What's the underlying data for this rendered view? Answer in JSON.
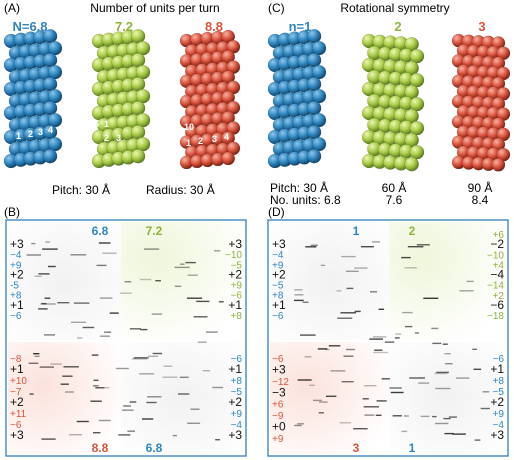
{
  "panel_a": {
    "label": "(A)",
    "title": "Number of units per turn",
    "n_labels": [
      {
        "text": "N=6.8",
        "color": "#2f86c0"
      },
      {
        "text": "7.2",
        "color": "#8cb43a"
      },
      {
        "text": "8.8",
        "color": "#d9533d"
      }
    ],
    "unit_numbers_blue": [
      "1",
      "2",
      "3",
      "4"
    ],
    "unit_numbers_green": [
      "6",
      "1",
      "2",
      "3"
    ],
    "unit_numbers_red": [
      "10",
      "1",
      "2",
      "3",
      "4"
    ],
    "pitch": "Pitch: 30 Å",
    "radius": "Radius: 30 Å"
  },
  "panel_c": {
    "label": "(C)",
    "title": "Rotational symmetry",
    "n_labels": [
      {
        "text": "n=1",
        "color": "#2f86c0"
      },
      {
        "text": "2",
        "color": "#8cb43a"
      },
      {
        "text": "3",
        "color": "#d9533d"
      }
    ],
    "pitch_row": [
      "Pitch: 30 Å",
      "60 Å",
      "90 Å"
    ],
    "units_row": [
      "No. units: 6.8",
      "7.6",
      "8.4"
    ]
  },
  "panel_b": {
    "label": "(B)",
    "corner_labels": [
      {
        "text": "6.8",
        "color": "#2f86c0"
      },
      {
        "text": "7.2",
        "color": "#8cb43a"
      },
      {
        "text": "8.8",
        "color": "#d9533d"
      },
      {
        "text": "6.8",
        "color": "#2f86c0"
      }
    ],
    "left_top": [
      {
        "t": "+3",
        "c": "#111"
      },
      {
        "t": "−4",
        "c": "#2f86c0"
      },
      {
        "t": "+9",
        "c": "#2f86c0"
      },
      {
        "t": "+2",
        "c": "#111"
      },
      {
        "t": "-5",
        "c": "#2f86c0"
      },
      {
        "t": "+8",
        "c": "#2f86c0"
      },
      {
        "t": "+1",
        "c": "#111"
      },
      {
        "t": "−6",
        "c": "#2f86c0"
      }
    ],
    "right_top": [
      {
        "t": "+3",
        "c": "#111"
      },
      {
        "t": "−10",
        "c": "#8cb43a"
      },
      {
        "t": "−5",
        "c": "#8cb43a"
      },
      {
        "t": "+2",
        "c": "#111"
      },
      {
        "t": "+9",
        "c": "#8cb43a"
      },
      {
        "t": "−6",
        "c": "#8cb43a"
      },
      {
        "t": "+1",
        "c": "#111"
      },
      {
        "t": "+8",
        "c": "#8cb43a"
      }
    ],
    "left_bottom": [
      {
        "t": "−8",
        "c": "#d9533d"
      },
      {
        "t": "+1",
        "c": "#111"
      },
      {
        "t": "+10",
        "c": "#d9533d"
      },
      {
        "t": "−7",
        "c": "#d9533d"
      },
      {
        "t": "+2",
        "c": "#111"
      },
      {
        "t": "+11",
        "c": "#d9533d"
      },
      {
        "t": "−6",
        "c": "#d9533d"
      },
      {
        "t": "+3",
        "c": "#111"
      }
    ],
    "right_bottom": [
      {
        "t": "−6",
        "c": "#2f86c0"
      },
      {
        "t": "+1",
        "c": "#111"
      },
      {
        "t": "+8",
        "c": "#2f86c0"
      },
      {
        "t": "−5",
        "c": "#2f86c0"
      },
      {
        "t": "+2",
        "c": "#111"
      },
      {
        "t": "+9",
        "c": "#2f86c0"
      },
      {
        "t": "−4",
        "c": "#2f86c0"
      },
      {
        "t": "+3",
        "c": "#111"
      }
    ]
  },
  "panel_d": {
    "label": "(D)",
    "corner_labels": [
      {
        "text": "1",
        "color": "#2f86c0"
      },
      {
        "text": "2",
        "color": "#8cb43a"
      },
      {
        "text": "3",
        "color": "#d9533d"
      },
      {
        "text": "1",
        "color": "#2f86c0"
      }
    ],
    "left_top": [
      {
        "t": "+3",
        "c": "#111"
      },
      {
        "t": "−4",
        "c": "#2f86c0"
      },
      {
        "t": "+9",
        "c": "#2f86c0"
      },
      {
        "t": "+2",
        "c": "#111"
      },
      {
        "t": "−5",
        "c": "#2f86c0"
      },
      {
        "t": "+8",
        "c": "#2f86c0"
      },
      {
        "t": "+1",
        "c": "#111"
      },
      {
        "t": "−6",
        "c": "#2f86c0"
      }
    ],
    "right_top": [
      {
        "t": "+6",
        "c": "#8cb43a"
      },
      {
        "t": "−2",
        "c": "#111"
      },
      {
        "t": "−10",
        "c": "#8cb43a"
      },
      {
        "t": "+4",
        "c": "#8cb43a"
      },
      {
        "t": "−4",
        "c": "#111"
      },
      {
        "t": "−14",
        "c": "#8cb43a"
      },
      {
        "t": "+2",
        "c": "#8cb43a"
      },
      {
        "t": "−6",
        "c": "#111"
      },
      {
        "t": "−18",
        "c": "#8cb43a"
      }
    ],
    "left_bottom": [
      {
        "t": "−6",
        "c": "#d9533d"
      },
      {
        "t": "+3",
        "c": "#111"
      },
      {
        "t": "−12",
        "c": "#d9533d"
      },
      {
        "t": "−3",
        "c": "#111"
      },
      {
        "t": "+6",
        "c": "#d9533d"
      },
      {
        "t": "−9",
        "c": "#d9533d"
      },
      {
        "t": "+0",
        "c": "#111"
      },
      {
        "t": "+9",
        "c": "#d9533d"
      }
    ],
    "right_bottom": [
      {
        "t": "−6",
        "c": "#2f86c0"
      },
      {
        "t": "+1",
        "c": "#111"
      },
      {
        "t": "+8",
        "c": "#2f86c0"
      },
      {
        "t": "−5",
        "c": "#2f86c0"
      },
      {
        "t": "+2",
        "c": "#111"
      },
      {
        "t": "+9",
        "c": "#2f86c0"
      },
      {
        "t": "−4",
        "c": "#2f86c0"
      },
      {
        "t": "+3",
        "c": "#111"
      }
    ]
  },
  "colors": {
    "blue": "#2f86c0",
    "green": "#8cb43a",
    "red": "#d9533d",
    "frame": "#4f8fc6"
  }
}
